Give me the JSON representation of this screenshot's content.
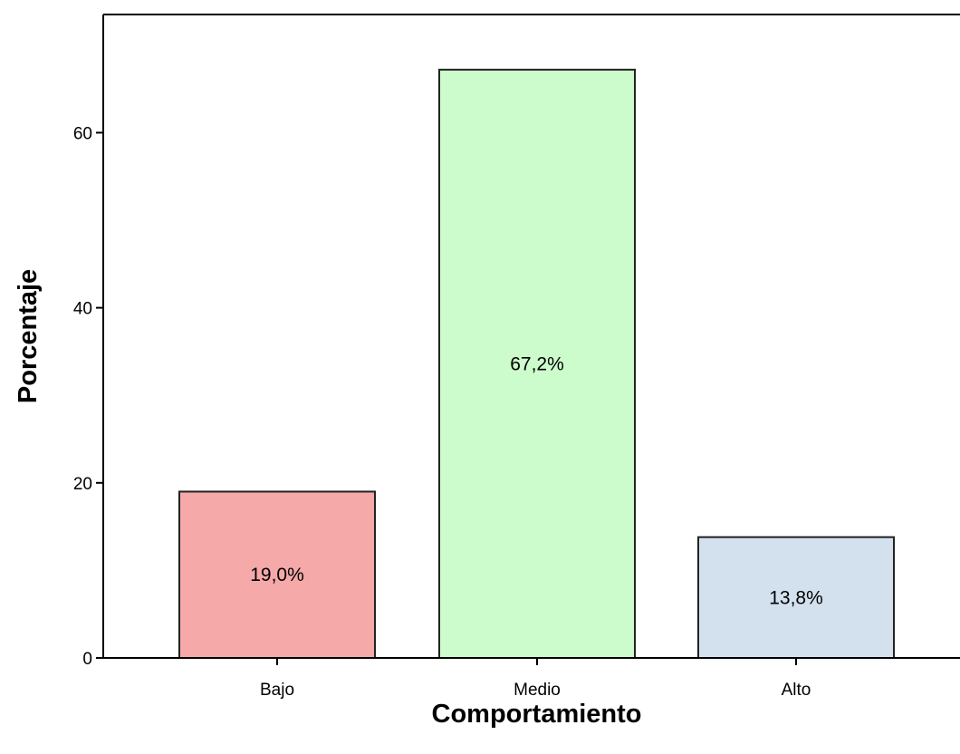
{
  "chart_data": {
    "type": "bar",
    "title": "",
    "xlabel": "Comportamiento",
    "ylabel": "Porcentaje",
    "categories": [
      "Bajo",
      "Medio",
      "Alto"
    ],
    "values": [
      19.0,
      67.2,
      13.8
    ],
    "data_labels": [
      "19,0%",
      "67,2%",
      "13,8%"
    ],
    "colors": [
      "#f5a9a9",
      "#ccfccb",
      "#d3e1ef"
    ],
    "ylim": [
      0,
      73.5
    ],
    "yticks": [
      0,
      20,
      40,
      60
    ],
    "ytick_labels": [
      "0",
      "20",
      "40",
      "60"
    ],
    "grid": false,
    "legend": "none"
  }
}
